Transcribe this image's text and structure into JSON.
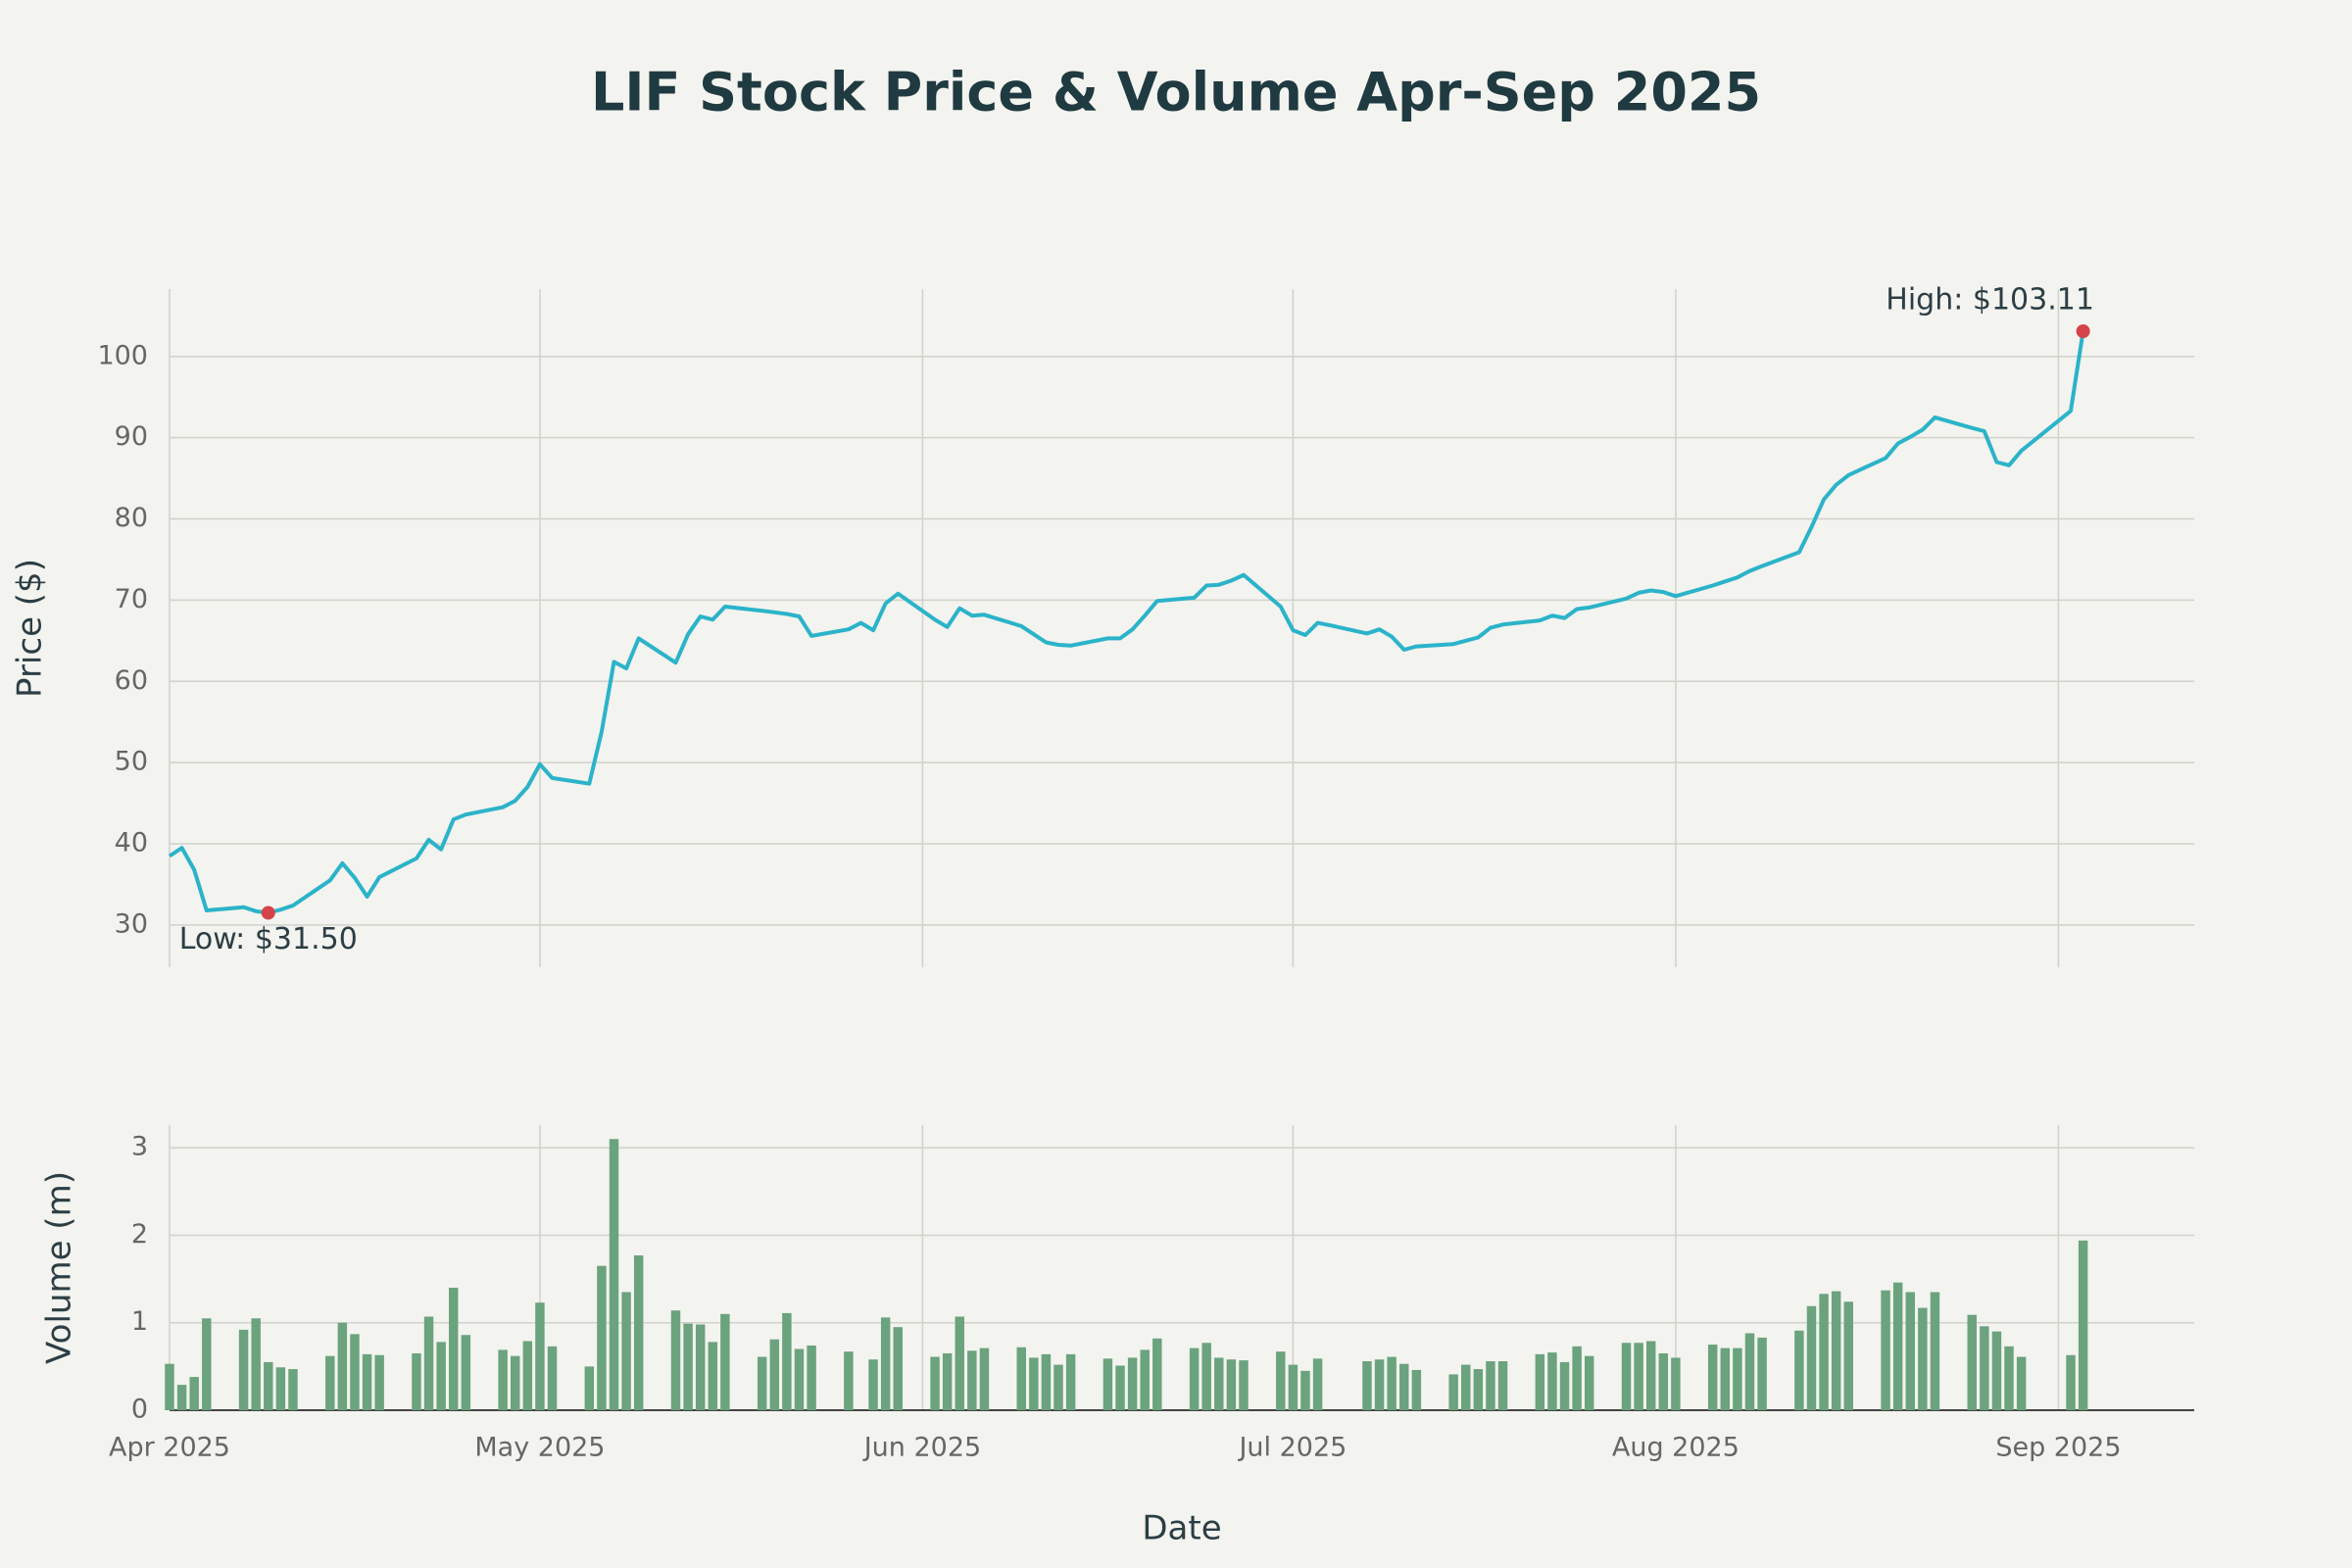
{
  "chart_data": [
    {
      "type": "line",
      "title": "LIF Stock Price & Volume Apr-Sep 2025",
      "y_label": "Price ($)",
      "color": "#2bb3c9",
      "marker_color": "#d6424a",
      "grid": true,
      "ylim": [
        24.8,
        108.3
      ],
      "yticks": [
        30,
        40,
        50,
        60,
        70,
        80,
        90,
        100
      ],
      "x": [
        "2025-04-01",
        "2025-04-02",
        "2025-04-03",
        "2025-04-04",
        "2025-04-07",
        "2025-04-08",
        "2025-04-09",
        "2025-04-10",
        "2025-04-11",
        "2025-04-14",
        "2025-04-15",
        "2025-04-16",
        "2025-04-17",
        "2025-04-18",
        "2025-04-21",
        "2025-04-22",
        "2025-04-23",
        "2025-04-24",
        "2025-04-25",
        "2025-04-28",
        "2025-04-29",
        "2025-04-30",
        "2025-05-01",
        "2025-05-02",
        "2025-05-05",
        "2025-05-06",
        "2025-05-07",
        "2025-05-08",
        "2025-05-09",
        "2025-05-12",
        "2025-05-13",
        "2025-05-14",
        "2025-05-15",
        "2025-05-16",
        "2025-05-19",
        "2025-05-20",
        "2025-05-21",
        "2025-05-22",
        "2025-05-23",
        "2025-05-26",
        "2025-05-27",
        "2025-05-28",
        "2025-05-29",
        "2025-05-30",
        "2025-06-02",
        "2025-06-03",
        "2025-06-04",
        "2025-06-05",
        "2025-06-06",
        "2025-06-09",
        "2025-06-10",
        "2025-06-11",
        "2025-06-12",
        "2025-06-13",
        "2025-06-16",
        "2025-06-17",
        "2025-06-18",
        "2025-06-19",
        "2025-06-20",
        "2025-06-23",
        "2025-06-24",
        "2025-06-25",
        "2025-06-26",
        "2025-06-27",
        "2025-06-30",
        "2025-07-01",
        "2025-07-02",
        "2025-07-03",
        "2025-07-04",
        "2025-07-07",
        "2025-07-08",
        "2025-07-09",
        "2025-07-10",
        "2025-07-11",
        "2025-07-14",
        "2025-07-15",
        "2025-07-16",
        "2025-07-17",
        "2025-07-18",
        "2025-07-21",
        "2025-07-22",
        "2025-07-23",
        "2025-07-24",
        "2025-07-25",
        "2025-07-28",
        "2025-07-29",
        "2025-07-30",
        "2025-07-31",
        "2025-08-01",
        "2025-08-04",
        "2025-08-05",
        "2025-08-06",
        "2025-08-07",
        "2025-08-08",
        "2025-08-11",
        "2025-08-12",
        "2025-08-13",
        "2025-08-14",
        "2025-08-15",
        "2025-08-18",
        "2025-08-19",
        "2025-08-20",
        "2025-08-21",
        "2025-08-22",
        "2025-08-25",
        "2025-08-26",
        "2025-08-27",
        "2025-08-28",
        "2025-08-29",
        "2025-09-02",
        "2025-09-03"
      ],
      "values": [
        38.5,
        39.5,
        36.8,
        31.8,
        32.2,
        31.7,
        31.5,
        31.9,
        32.4,
        35.5,
        37.6,
        35.8,
        33.5,
        35.9,
        38.2,
        40.5,
        39.3,
        43.0,
        43.6,
        44.5,
        45.3,
        47.0,
        49.8,
        48.1,
        47.4,
        53.8,
        62.4,
        61.6,
        65.3,
        62.3,
        65.8,
        68.0,
        67.6,
        69.2,
        68.7,
        68.5,
        68.3,
        68.0,
        65.6,
        66.4,
        67.2,
        66.3,
        69.6,
        70.8,
        67.6,
        66.7,
        69.0,
        68.1,
        68.2,
        66.8,
        65.8,
        64.8,
        64.5,
        64.4,
        65.3,
        65.3,
        66.4,
        68.1,
        69.9,
        70.3,
        71.8,
        71.9,
        72.4,
        73.1,
        69.2,
        66.3,
        65.7,
        67.2,
        66.9,
        65.9,
        66.4,
        65.5,
        63.9,
        64.3,
        64.6,
        65.0,
        65.4,
        66.6,
        67.0,
        67.5,
        68.1,
        67.8,
        68.9,
        69.1,
        70.2,
        70.9,
        71.2,
        71.0,
        70.5,
        71.8,
        72.3,
        72.8,
        73.6,
        74.2,
        75.9,
        79.0,
        82.4,
        84.2,
        85.4,
        87.5,
        89.3,
        90.1,
        91.0,
        92.5,
        91.2,
        90.8,
        87.0,
        86.6,
        88.4,
        93.3,
        103.11
      ],
      "annotations": [
        {
          "text": "High: $103.11",
          "x": "2025-09-03",
          "y": 103.11
        },
        {
          "text": "Low: $31.50",
          "x": "2025-04-09",
          "y": 31.5
        }
      ]
    },
    {
      "type": "bar",
      "y_label": "Volume (m)",
      "x_label": "Date",
      "color": "#6aa37d",
      "grid": true,
      "ylim": [
        0,
        3.26
      ],
      "yticks": [
        0,
        1,
        2,
        3
      ],
      "xlim": [
        "2025-04-01",
        "2025-09-12"
      ],
      "xticks": [
        {
          "value": "2025-04-01",
          "label": "Apr 2025"
        },
        {
          "value": "2025-05-01",
          "label": "May 2025"
        },
        {
          "value": "2025-06-01",
          "label": "Jun 2025"
        },
        {
          "value": "2025-07-01",
          "label": "Jul 2025"
        },
        {
          "value": "2025-08-01",
          "label": "Aug 2025"
        },
        {
          "value": "2025-09-01",
          "label": "Sep 2025"
        }
      ],
      "x": [
        "2025-04-01",
        "2025-04-02",
        "2025-04-03",
        "2025-04-04",
        "2025-04-07",
        "2025-04-08",
        "2025-04-09",
        "2025-04-10",
        "2025-04-11",
        "2025-04-14",
        "2025-04-15",
        "2025-04-16",
        "2025-04-17",
        "2025-04-18",
        "2025-04-21",
        "2025-04-22",
        "2025-04-23",
        "2025-04-24",
        "2025-04-25",
        "2025-04-28",
        "2025-04-29",
        "2025-04-30",
        "2025-05-01",
        "2025-05-02",
        "2025-05-05",
        "2025-05-06",
        "2025-05-07",
        "2025-05-08",
        "2025-05-09",
        "2025-05-12",
        "2025-05-13",
        "2025-05-14",
        "2025-05-15",
        "2025-05-16",
        "2025-05-19",
        "2025-05-20",
        "2025-05-21",
        "2025-05-22",
        "2025-05-23",
        "2025-05-26",
        "2025-05-27",
        "2025-05-28",
        "2025-05-29",
        "2025-05-30",
        "2025-06-02",
        "2025-06-03",
        "2025-06-04",
        "2025-06-05",
        "2025-06-06",
        "2025-06-09",
        "2025-06-10",
        "2025-06-11",
        "2025-06-12",
        "2025-06-13",
        "2025-06-16",
        "2025-06-17",
        "2025-06-18",
        "2025-06-19",
        "2025-06-20",
        "2025-06-23",
        "2025-06-24",
        "2025-06-25",
        "2025-06-26",
        "2025-06-27",
        "2025-06-30",
        "2025-07-01",
        "2025-07-02",
        "2025-07-03",
        "2025-07-04",
        "2025-07-07",
        "2025-07-08",
        "2025-07-09",
        "2025-07-10",
        "2025-07-11",
        "2025-07-14",
        "2025-07-15",
        "2025-07-16",
        "2025-07-17",
        "2025-07-18",
        "2025-07-21",
        "2025-07-22",
        "2025-07-23",
        "2025-07-24",
        "2025-07-25",
        "2025-07-28",
        "2025-07-29",
        "2025-07-30",
        "2025-07-31",
        "2025-08-01",
        "2025-08-04",
        "2025-08-05",
        "2025-08-06",
        "2025-08-07",
        "2025-08-08",
        "2025-08-11",
        "2025-08-12",
        "2025-08-13",
        "2025-08-14",
        "2025-08-15",
        "2025-08-18",
        "2025-08-19",
        "2025-08-20",
        "2025-08-21",
        "2025-08-22",
        "2025-08-25",
        "2025-08-26",
        "2025-08-27",
        "2025-08-28",
        "2025-08-29",
        "2025-09-02",
        "2025-09-03"
      ],
      "values": [
        0.53,
        0.29,
        0.38,
        1.05,
        0.92,
        1.05,
        0.55,
        0.49,
        0.47,
        0.62,
        1.0,
        0.87,
        0.64,
        0.63,
        0.65,
        1.07,
        0.78,
        1.4,
        0.86,
        0.69,
        0.62,
        0.79,
        1.23,
        0.73,
        0.5,
        1.65,
        3.1,
        1.35,
        1.77,
        1.14,
        0.99,
        0.98,
        0.78,
        1.1,
        0.61,
        0.81,
        1.11,
        0.7,
        0.74,
        0.67,
        null,
        0.58,
        1.06,
        0.95,
        0.61,
        0.65,
        1.07,
        0.68,
        0.71,
        0.72,
        0.6,
        0.64,
        0.52,
        0.64,
        0.59,
        0.51,
        0.6,
        0.69,
        0.82,
        0.71,
        0.77,
        0.6,
        0.58,
        0.57,
        0.67,
        0.52,
        0.45,
        0.59,
        null,
        0.56,
        0.58,
        0.61,
        0.53,
        0.46,
        0.41,
        0.52,
        0.47,
        0.56,
        0.56,
        0.64,
        0.66,
        0.55,
        0.73,
        0.62,
        0.77,
        0.77,
        0.79,
        0.65,
        0.6,
        0.75,
        0.71,
        0.71,
        0.88,
        0.83,
        0.91,
        1.19,
        1.33,
        1.36,
        1.24,
        1.37,
        1.46,
        1.35,
        1.17,
        1.35,
        1.09,
        0.96,
        0.9,
        0.73,
        0.61,
        0.63,
        1.94
      ]
    }
  ]
}
